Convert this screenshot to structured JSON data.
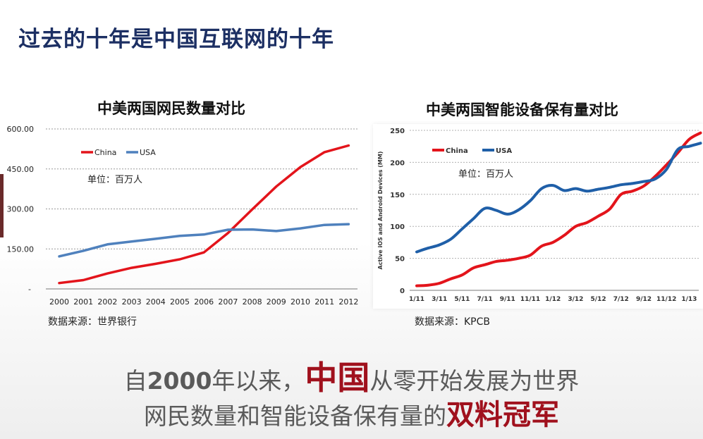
{
  "slide": {
    "title": "过去的十年是中国互联网的十年",
    "bottom_line1": {
      "pre": "自",
      "year": "2000",
      "mid": "年以来，",
      "highlight": "中国",
      "post": "从零开始发展为世界"
    },
    "bottom_line2": {
      "pre": "网民数量和智能设备保有量的",
      "highlight": "双料冠军"
    }
  },
  "left_chart": {
    "title": "中美两国网民数量对比",
    "unit_note": "单位：百万人",
    "source": "数据来源：世界银行"
  },
  "right_chart": {
    "title": "中美两国智能设备保有量对比",
    "unit_note": "单位：百万人",
    "source": "数据来源：KPCB"
  },
  "chart_data": [
    {
      "type": "line",
      "title": "中美两国网民数量对比",
      "x": [
        "2000",
        "2001",
        "2002",
        "2003",
        "2004",
        "2005",
        "2006",
        "2007",
        "2008",
        "2009",
        "2010",
        "2011",
        "2012"
      ],
      "ytick_labels": [
        "-",
        "150.00",
        "300.00",
        "450.00",
        "600.00"
      ],
      "ylim": [
        0,
        600
      ],
      "grid": true,
      "legend": "top-left",
      "series": [
        {
          "name": "China",
          "color": "#e3141b",
          "values": [
            22,
            33,
            58,
            79,
            94,
            111,
            137,
            210,
            298,
            384,
            457,
            513,
            538
          ]
        },
        {
          "name": "USA",
          "color": "#4f81bd",
          "values": [
            122,
            143,
            167,
            178,
            188,
            199,
            204,
            222,
            223,
            217,
            227,
            240,
            243
          ]
        }
      ]
    },
    {
      "type": "line",
      "title": "中美两国智能设备保有量对比",
      "ylabel": "Active iOS and Android Devices (MM)",
      "x": [
        "1/11",
        "2/11",
        "3/11",
        "4/11",
        "5/11",
        "6/11",
        "7/11",
        "8/11",
        "9/11",
        "10/11",
        "11/11",
        "12/11",
        "1/12",
        "2/12",
        "3/12",
        "4/12",
        "5/12",
        "6/12",
        "7/12",
        "8/12",
        "9/12",
        "10/12",
        "11/12",
        "12/12",
        "1/13",
        "2/13"
      ],
      "xtick_labels": [
        "1/11",
        "3/11",
        "5/11",
        "7/11",
        "9/11",
        "11/11",
        "1/12",
        "3/12",
        "5/12",
        "7/12",
        "9/12",
        "11/12",
        "1/13"
      ],
      "yticks": [
        0,
        50,
        100,
        150,
        200,
        250
      ],
      "ylim": [
        0,
        250
      ],
      "grid": true,
      "legend": "top-left",
      "series": [
        {
          "name": "China",
          "color": "#e3141b",
          "values": [
            7,
            8,
            11,
            18,
            24,
            35,
            40,
            45,
            47,
            50,
            55,
            69,
            75,
            86,
            100,
            106,
            116,
            127,
            150,
            155,
            163,
            178,
            196,
            215,
            236,
            246
          ]
        },
        {
          "name": "USA",
          "color": "#1f5fa8",
          "values": [
            60,
            66,
            71,
            80,
            96,
            112,
            128,
            125,
            119,
            126,
            140,
            159,
            164,
            156,
            159,
            155,
            158,
            161,
            165,
            167,
            170,
            174,
            189,
            220,
            225,
            230
          ]
        }
      ]
    }
  ]
}
